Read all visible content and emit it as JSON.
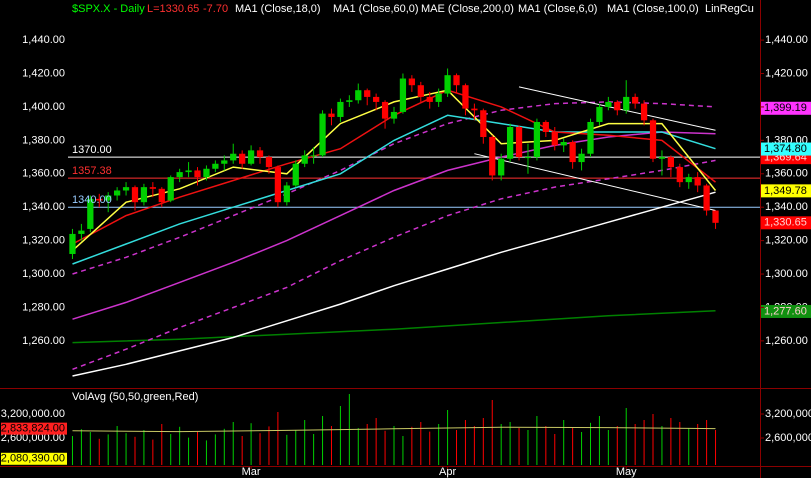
{
  "chart_data": {
    "type": "candlestick",
    "header": [
      {
        "text": "$SPX.X - Daily",
        "color": "#00ff00"
      },
      {
        "text": "L=1330.65",
        "color": "#ff3030"
      },
      {
        "text": "-7.70",
        "color": "#ff3030"
      },
      {
        "text": "MA1 (Close,18,0)",
        "color": "#ffffff"
      },
      {
        "text": "MA1 (Close,60,0)",
        "color": "#ffffff"
      },
      {
        "text": "MAE (Close,200,0)",
        "color": "#ffffff"
      },
      {
        "text": "MA1 (Close,6,0)",
        "color": "#ffffff"
      },
      {
        "text": "MA1 (Close,100,0)",
        "color": "#ffffff"
      },
      {
        "text": "LinRegCu",
        "color": "#ffffff"
      }
    ],
    "categories": [
      null,
      null,
      null,
      null,
      null,
      null,
      null,
      null,
      null,
      null,
      null,
      null,
      null,
      null,
      null,
      null,
      null,
      null,
      null,
      null,
      "Mar",
      null,
      null,
      null,
      null,
      null,
      null,
      null,
      null,
      null,
      null,
      null,
      null,
      null,
      null,
      null,
      null,
      null,
      null,
      null,
      null,
      null,
      "Apr",
      null,
      null,
      null,
      null,
      null,
      null,
      null,
      null,
      null,
      null,
      null,
      null,
      null,
      null,
      null,
      null,
      null,
      null,
      null,
      "May",
      null,
      null,
      null,
      null,
      null,
      null,
      null,
      null,
      null,
      null
    ],
    "open": [
      1312,
      1324,
      1327,
      1345,
      1344,
      1347,
      1350,
      1352,
      1343,
      1352,
      1351,
      1344,
      1358,
      1361,
      1362,
      1358,
      1363,
      1366,
      1368,
      1372,
      1366,
      1374,
      1370,
      1364,
      1343,
      1353,
      1366,
      1371,
      1371,
      1396,
      1394,
      1403,
      1404,
      1410,
      1406,
      1403,
      1393,
      1397,
      1417,
      1413,
      1406,
      1403,
      1408,
      1419,
      1413,
      1399,
      1398,
      1382,
      1359,
      1369,
      1388,
      1370,
      1370,
      1391,
      1385,
      1377,
      1379,
      1367,
      1372,
      1391,
      1400,
      1403,
      1398,
      1406,
      1402,
      1392,
      1369,
      1370,
      1364,
      1355,
      1358,
      1353,
      1338
    ],
    "high": [
      1327,
      1330,
      1347,
      1348,
      1349,
      1352,
      1355,
      1353,
      1354,
      1355,
      1352,
      1359,
      1363,
      1367,
      1364,
      1365,
      1368,
      1371,
      1378,
      1374,
      1377,
      1376,
      1371,
      1365,
      1355,
      1368,
      1374,
      1376,
      1398,
      1399,
      1405,
      1407,
      1414,
      1411,
      1408,
      1404,
      1400,
      1420,
      1419,
      1415,
      1409,
      1411,
      1423,
      1420,
      1414,
      1402,
      1399,
      1383,
      1372,
      1390,
      1389,
      1378,
      1393,
      1392,
      1388,
      1381,
      1380,
      1375,
      1393,
      1402,
      1406,
      1404,
      1416,
      1408,
      1404,
      1393,
      1374,
      1371,
      1366,
      1360,
      1361,
      1354,
      1338
    ],
    "low": [
      1309,
      1320,
      1325,
      1340,
      1337,
      1344,
      1347,
      1338,
      1341,
      1346,
      1340,
      1343,
      1355,
      1358,
      1353,
      1356,
      1361,
      1362,
      1366,
      1363,
      1365,
      1366,
      1360,
      1340,
      1341,
      1352,
      1364,
      1366,
      1370,
      1389,
      1391,
      1400,
      1402,
      1401,
      1398,
      1387,
      1390,
      1396,
      1409,
      1403,
      1399,
      1400,
      1406,
      1408,
      1395,
      1392,
      1378,
      1356,
      1356,
      1367,
      1368,
      1360,
      1368,
      1382,
      1374,
      1373,
      1363,
      1362,
      1370,
      1389,
      1398,
      1395,
      1396,
      1399,
      1389,
      1367,
      1359,
      1358,
      1352,
      1351,
      1349,
      1335,
      1327
    ],
    "close": [
      1324,
      1326,
      1345,
      1344,
      1347,
      1350,
      1352,
      1343,
      1352,
      1351,
      1343,
      1358,
      1361,
      1362,
      1358,
      1363,
      1366,
      1368,
      1372,
      1366,
      1374,
      1370,
      1364,
      1343,
      1353,
      1366,
      1371,
      1371,
      1396,
      1394,
      1403,
      1404,
      1410,
      1406,
      1403,
      1393,
      1397,
      1417,
      1413,
      1406,
      1403,
      1408,
      1419,
      1413,
      1399,
      1398,
      1382,
      1359,
      1369,
      1388,
      1370,
      1370,
      1391,
      1385,
      1377,
      1379,
      1367,
      1372,
      1391,
      1400,
      1403,
      1398,
      1406,
      1402,
      1392,
      1369,
      1370,
      1364,
      1355,
      1358,
      1353,
      1338,
      1330.65
    ],
    "up_color": "#00d000",
    "down_color": "#ff0000",
    "ylim": [
      1233,
      1461
    ],
    "yticks": [
      {
        "value": 1260,
        "label": "1,260.00"
      },
      {
        "value": 1280,
        "label": "1,280.00"
      },
      {
        "value": 1300,
        "label": "1,300.00"
      },
      {
        "value": 1320,
        "label": "1,320.00"
      },
      {
        "value": 1340,
        "label": "1,340.00"
      },
      {
        "value": 1360,
        "label": "1,360.00"
      },
      {
        "value": 1380,
        "label": "1,380.00"
      },
      {
        "value": 1400,
        "label": "1,400.00"
      },
      {
        "value": 1420,
        "label": "1,420.00"
      },
      {
        "value": 1440,
        "label": "1,440.00"
      }
    ],
    "overlays": [
      {
        "color": "#008000",
        "dash": false,
        "x": [
          0,
          12,
          24,
          36,
          48,
          60,
          72
        ],
        "values": [
          1259,
          1261,
          1264,
          1267,
          1271,
          1275,
          1278
        ]
      },
      {
        "color": "#ffffff",
        "dash": false,
        "x": [
          0,
          6,
          12,
          18,
          24,
          30,
          36,
          42,
          48,
          54,
          60,
          66,
          72
        ],
        "values": [
          1239,
          1246,
          1254,
          1262,
          1272,
          1282,
          1293,
          1303,
          1313,
          1322,
          1331,
          1340,
          1349
        ]
      },
      {
        "color": "#cc33cc",
        "dash": true,
        "x": [
          0,
          6,
          12,
          18,
          24,
          30,
          36,
          42,
          48,
          54,
          60,
          66,
          72
        ],
        "values": [
          1243,
          1255,
          1268,
          1280,
          1292,
          1308,
          1322,
          1335,
          1345,
          1352,
          1357,
          1362,
          1368
        ]
      },
      {
        "color": "#cc33cc",
        "dash": false,
        "x": [
          0,
          6,
          12,
          18,
          24,
          30,
          36,
          42,
          48,
          54,
          60,
          66,
          72
        ],
        "values": [
          1273,
          1283,
          1295,
          1307,
          1320,
          1335,
          1350,
          1362,
          1370,
          1377,
          1382,
          1385,
          1384
        ]
      },
      {
        "color": "#cc33cc",
        "dash": true,
        "x": [
          0,
          6,
          12,
          18,
          24,
          30,
          36,
          42,
          48,
          54,
          60,
          66,
          72
        ],
        "values": [
          1300,
          1310,
          1322,
          1335,
          1348,
          1362,
          1378,
          1390,
          1398,
          1402,
          1403,
          1402,
          1400
        ]
      },
      {
        "color": "#33dddd",
        "dash": false,
        "x": [
          0,
          6,
          12,
          18,
          24,
          30,
          36,
          42,
          48,
          54,
          60,
          66,
          72
        ],
        "values": [
          1306,
          1318,
          1330,
          1340,
          1350,
          1360,
          1380,
          1395,
          1390,
          1385,
          1385,
          1385,
          1375
        ]
      },
      {
        "color": "#ee1111",
        "dash": false,
        "x": [
          0,
          6,
          12,
          18,
          24,
          30,
          36,
          42,
          48,
          54,
          60,
          66,
          72
        ],
        "values": [
          1318,
          1335,
          1346,
          1356,
          1366,
          1375,
          1395,
          1410,
          1400,
          1385,
          1383,
          1380,
          1355
        ]
      },
      {
        "color": "#ffff44",
        "dash": false,
        "x": [
          0,
          6,
          12,
          18,
          24,
          30,
          36,
          42,
          48,
          54,
          60,
          66,
          72
        ],
        "values": [
          1314,
          1343,
          1351,
          1364,
          1360,
          1390,
          1403,
          1410,
          1378,
          1380,
          1390,
          1390,
          1350
        ]
      }
    ],
    "trendlines": [
      {
        "color": "#ffffff",
        "x": [
          50,
          72
        ],
        "values": [
          1412,
          1386
        ]
      },
      {
        "color": "#ffffff",
        "x": [
          45,
          72
        ],
        "values": [
          1372,
          1338
        ]
      }
    ],
    "hlines": [
      {
        "value": 1370,
        "label": "1370.00",
        "color": "#ffffff"
      },
      {
        "value": 1357.38,
        "label": "1357.38",
        "color": "#ff3030"
      },
      {
        "value": 1340,
        "label": "1340.00",
        "color": "#99ccff"
      }
    ],
    "price_tags": [
      {
        "value": 1399.19,
        "label": "1,399.19",
        "color": "#ff33ff"
      },
      {
        "value": 1369.64,
        "label": "1,369.64",
        "color": "#ff0000"
      },
      {
        "value": 1374.8,
        "label": "1,374.80",
        "color": "#33ffff"
      },
      {
        "value": 1349.78,
        "label": "1,349.78",
        "color": "#ffff00"
      },
      {
        "value": 1330.65,
        "label": "1,330.65",
        "color": "#ff0000"
      },
      {
        "value": 1277.6,
        "label": "1,277.60",
        "color": "#109010"
      }
    ],
    "volume": {
      "title": "VolAvg (50,50,green,Red)",
      "values": [
        2650000,
        2820000,
        2750000,
        2580000,
        2690000,
        2900000,
        2720000,
        2630000,
        2800000,
        2560000,
        2950000,
        2700000,
        2880000,
        2610000,
        2760000,
        2540000,
        2690000,
        2830000,
        3000000,
        2650000,
        2970000,
        2720000,
        2890000,
        3250000,
        2680000,
        2800000,
        3050000,
        2700000,
        3150000,
        2900000,
        3400000,
        3700000,
        2850000,
        2950000,
        3100000,
        2780000,
        2900000,
        2650000,
        2880000,
        3000000,
        2760000,
        2950000,
        3300000,
        2800000,
        3050000,
        2900000,
        3100000,
        3550000,
        2950000,
        3000000,
        2850000,
        2800000,
        3150000,
        2900000,
        2700000,
        3050000,
        2850000,
        2750000,
        2980000,
        3150000,
        2800000,
        2900000,
        3350000,
        2950000,
        3050000,
        3200000,
        2900000,
        3100000,
        3000000,
        2850000,
        2950000,
        3050000,
        2800000
      ],
      "ylim": [
        1925000,
        3800000
      ],
      "yticks": [
        {
          "value": 3200000,
          "label": "3,200,000.00"
        },
        {
          "value": 2600000,
          "label": "2,600,000.00"
        }
      ],
      "avg": {
        "color": "#c8c864",
        "x": [
          0,
          12,
          24,
          36,
          48,
          60,
          72
        ],
        "values": [
          2780000,
          2760000,
          2790000,
          2830000,
          2870000,
          2860000,
          2834000
        ]
      },
      "tags": [
        {
          "value": 2833824,
          "label": "2,833,824.00",
          "color": "#ff2020"
        },
        {
          "value": 2080390,
          "label": "2,080,390.00",
          "color": "#ffff00"
        }
      ]
    }
  }
}
